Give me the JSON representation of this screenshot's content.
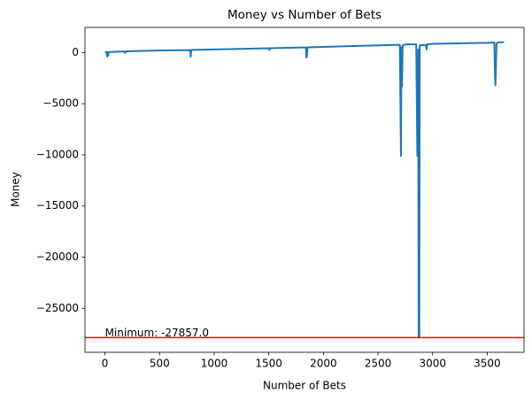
{
  "chart_data": {
    "type": "line",
    "title": "Money vs Number of Bets",
    "x_label": "Number of Bets",
    "y_label": "Money",
    "xlim": [
      -183,
      3837
    ],
    "ylim": [
      -29300,
      2450
    ],
    "xticks": [
      0,
      500,
      1000,
      1500,
      2000,
      2500,
      3000,
      3500
    ],
    "yticks": [
      {
        "value": -25000,
        "label": "−25000"
      },
      {
        "value": -20000,
        "label": "−20000"
      },
      {
        "value": -15000,
        "label": "−15000"
      },
      {
        "value": -10000,
        "label": "−10000"
      },
      {
        "value": -5000,
        "label": "−5000"
      },
      0
    ],
    "series": [
      {
        "color": "#1f77b4",
        "x": [
          0,
          15,
          20,
          25,
          30,
          35,
          180,
          185,
          190,
          500,
          780,
          785,
          790,
          1000,
          1500,
          1505,
          1510,
          1840,
          1845,
          1850,
          1855,
          2000,
          2500,
          2700,
          2710,
          2715,
          2720,
          2725,
          2760,
          2850,
          2860,
          2868,
          2872,
          2878,
          2882,
          2940,
          2945,
          2950,
          3000,
          3500,
          3565,
          3570,
          3575,
          3580,
          3585,
          3600,
          3654
        ],
        "values": [
          0,
          50,
          -400,
          50,
          -300,
          50,
          100,
          -50,
          110,
          200,
          230,
          -400,
          250,
          300,
          420,
          250,
          420,
          500,
          -500,
          -300,
          500,
          550,
          700,
          750,
          -10100,
          500,
          -3300,
          700,
          800,
          800,
          -10100,
          300,
          -27857,
          -27857,
          700,
          750,
          300,
          800,
          850,
          950,
          980,
          -1600,
          -3200,
          -1400,
          900,
          1000,
          1000
        ]
      }
    ],
    "hline": {
      "value": -27857,
      "color": "#ff0000"
    },
    "annotation": "Minimum: -27857.0"
  }
}
